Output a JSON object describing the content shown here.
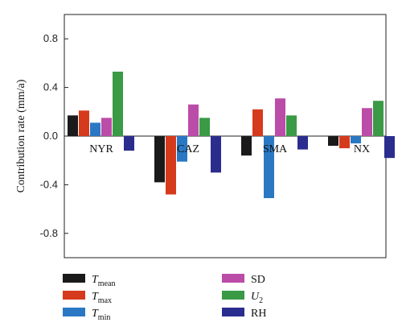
{
  "chart_data": {
    "type": "bar",
    "ylabel": "Contribution rate (mm/a)",
    "ylim": [
      -1.0,
      1.0
    ],
    "yticks": [
      0.8,
      0.4,
      0.0,
      -0.4,
      -0.8
    ],
    "ytick_labels": [
      "0.8",
      "0.4",
      "0.0",
      "-0.4",
      "-0.8"
    ],
    "categories": [
      "NYR",
      "CAZ",
      "SMA",
      "NX"
    ],
    "grid": false,
    "legend_position": "below",
    "series": [
      {
        "name": "T",
        "sub": "mean",
        "italic": true,
        "color": "#1a1a1a",
        "values": [
          0.17,
          -0.38,
          -0.16,
          -0.08
        ]
      },
      {
        "name": "T",
        "sub": "max",
        "italic": true,
        "color": "#d63a1c",
        "values": [
          0.21,
          -0.48,
          0.22,
          -0.1
        ]
      },
      {
        "name": "T",
        "sub": "min",
        "italic": true,
        "color": "#2a78c4",
        "values": [
          0.11,
          -0.21,
          -0.51,
          -0.06
        ]
      },
      {
        "name": "SD",
        "sub": "",
        "italic": false,
        "color": "#bb4ca8",
        "values": [
          0.15,
          0.26,
          0.31,
          0.23
        ]
      },
      {
        "name": "U",
        "sub": "2",
        "italic": true,
        "color": "#3a9a46",
        "values": [
          0.53,
          0.15,
          0.17,
          0.29
        ]
      },
      {
        "name": "RH",
        "sub": "",
        "italic": false,
        "color": "#2b2d8e",
        "values": [
          -0.12,
          -0.3,
          -0.11,
          -0.18
        ]
      }
    ],
    "legend_order": [
      0,
      3,
      1,
      4,
      2,
      5
    ]
  }
}
